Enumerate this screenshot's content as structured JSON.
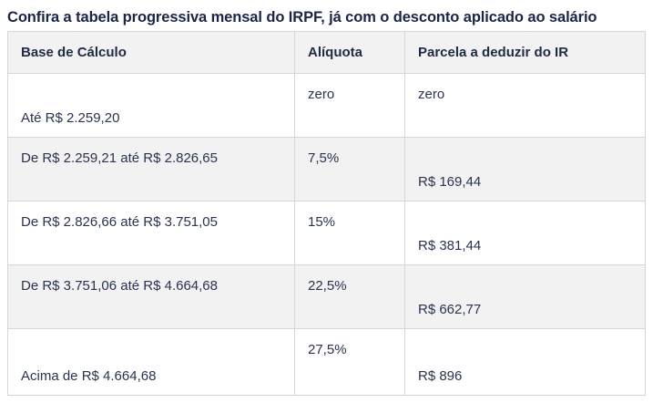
{
  "caption": "Confira a tabela progressiva mensal do IRPF, já com o desconto aplicado ao salário",
  "table": {
    "headers": [
      "Base de Cálculo",
      "Alíquota",
      "Parcela a deduzir do IR"
    ],
    "rows": [
      {
        "base": "Até R$ 2.259,20",
        "aliquota": "zero",
        "parcela": "zero"
      },
      {
        "base": "De R$ 2.259,21 até R$ 2.826,65",
        "aliquota": "7,5%",
        "parcela": "R$ 169,44"
      },
      {
        "base": "De R$ 2.826,66 até R$ 3.751,05",
        "aliquota": "15%",
        "parcela": "R$ 381,44"
      },
      {
        "base": "De R$ 3.751,06 até R$ 4.664,68",
        "aliquota": "22,5%",
        "parcela": "R$ 662,77"
      },
      {
        "base": "Acima de R$ 4.664,68",
        "aliquota": "27,5%",
        "parcela": "R$ 896"
      }
    ]
  }
}
